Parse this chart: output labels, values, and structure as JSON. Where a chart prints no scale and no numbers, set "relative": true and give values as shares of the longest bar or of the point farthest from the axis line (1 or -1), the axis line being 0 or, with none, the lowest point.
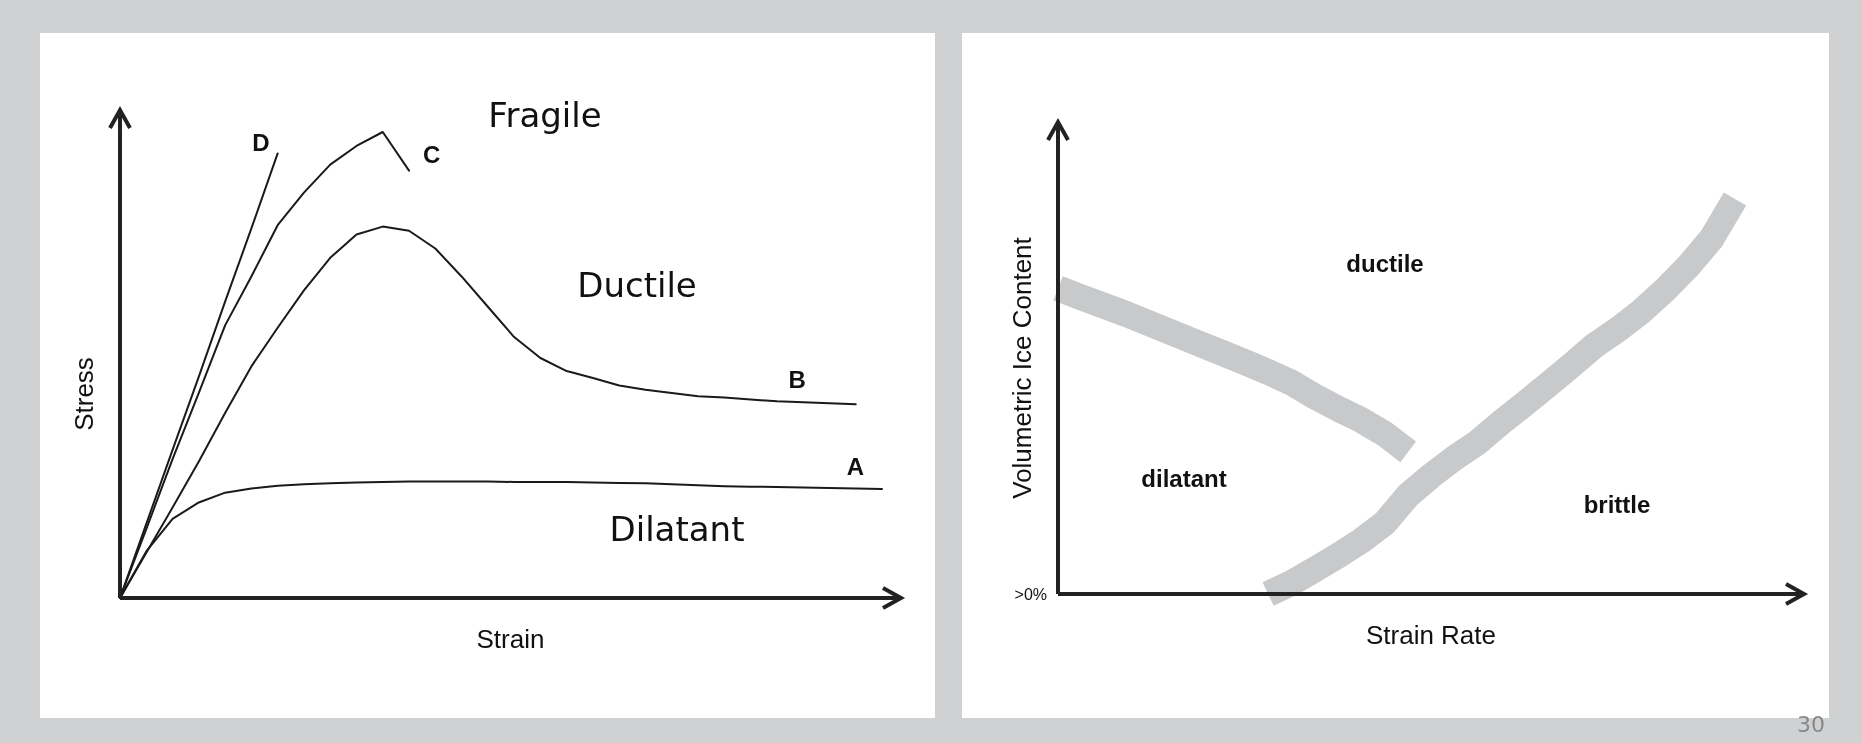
{
  "chart_data": [
    {
      "type": "line",
      "xlabel": "Strain",
      "ylabel": "Stress",
      "relative": true,
      "legend": false,
      "grid": false,
      "categories": [
        null,
        null,
        null,
        null,
        null,
        null,
        null,
        null,
        null,
        null,
        null,
        null,
        null,
        null,
        null,
        null,
        null,
        null,
        null,
        null,
        null,
        null,
        null,
        null,
        null,
        null,
        null,
        null,
        null,
        null
      ],
      "series": [
        {
          "name": "D",
          "color": "#1a1a1a",
          "values": [
            0,
            0.159,
            0.318,
            0.475,
            0.636,
            0.793,
            0.954,
            null,
            null,
            null,
            null,
            null,
            null,
            null,
            null,
            null,
            null,
            null,
            null,
            null,
            null,
            null,
            null,
            null,
            null,
            null,
            null,
            null,
            null,
            null
          ]
        },
        {
          "name": "C",
          "color": "#1a1a1a",
          "values": [
            0,
            0.148,
            0.298,
            0.44,
            0.585,
            0.69,
            0.8,
            0.87,
            0.93,
            0.97,
            1.0,
            0.917,
            null,
            null,
            null,
            null,
            null,
            null,
            null,
            null,
            null,
            null,
            null,
            null,
            null,
            null,
            null,
            null,
            null,
            null
          ]
        },
        {
          "name": "B",
          "color": "#1a1a1a",
          "values": [
            0,
            0.097,
            0.194,
            0.293,
            0.397,
            0.497,
            0.58,
            0.66,
            0.73,
            0.78,
            0.797,
            0.788,
            0.75,
            0.69,
            0.625,
            0.56,
            0.515,
            0.487,
            0.472,
            0.456,
            0.447,
            0.44,
            0.433,
            0.43,
            0.426,
            0.422,
            0.42,
            0.418,
            0.416,
            null
          ]
        },
        {
          "name": "A",
          "color": "#1a1a1a",
          "values": [
            0,
            0.1,
            0.17,
            0.205,
            0.226,
            0.235,
            0.241,
            0.244,
            0.246,
            0.248,
            0.249,
            0.25,
            0.25,
            0.25,
            0.25,
            0.249,
            0.249,
            0.249,
            0.248,
            0.247,
            0.246,
            0.244,
            0.242,
            0.24,
            0.239,
            0.238,
            0.237,
            0.236,
            0.235,
            0.234
          ]
        }
      ],
      "annotations": [
        "Fragile",
        "Ductile",
        "Dilatant"
      ]
    },
    {
      "type": "line",
      "xlabel": "Strain Rate",
      "ylabel": "Volumetric Ice Content",
      "relative": true,
      "legend": false,
      "grid": false,
      "categories": [
        null,
        null,
        null,
        null,
        null,
        null,
        null,
        null,
        null,
        null,
        null,
        null,
        null,
        null,
        null,
        null,
        null,
        null,
        null,
        null,
        null,
        null,
        null,
        null,
        null,
        null,
        null,
        null,
        null,
        null
      ],
      "series": [
        {
          "color": "#c8c9cb",
          "values": [
            0.774,
            0.751,
            0.729,
            0.707,
            0.683,
            0.659,
            0.635,
            0.611,
            0.587,
            0.562,
            0.535,
            0.5,
            0.469,
            0.44,
            0.405,
            0.36,
            null,
            null,
            null,
            null,
            null,
            null,
            null,
            null,
            null,
            null,
            null,
            null,
            null,
            null
          ]
        },
        {
          "color": "#c8c9cb",
          "values": [
            null,
            null,
            null,
            null,
            null,
            null,
            null,
            null,
            null,
            0,
            0.028,
            0.062,
            0.097,
            0.135,
            0.18,
            0.25,
            0.3,
            0.345,
            0.385,
            0.435,
            0.482,
            0.53,
            0.579,
            0.63,
            0.67,
            0.716,
            0.77,
            0.83,
            0.9,
            1.0
          ]
        }
      ],
      "annotations": [
        "ductile",
        "dilatant",
        "brittle",
        ">0%",
        "30"
      ]
    }
  ]
}
